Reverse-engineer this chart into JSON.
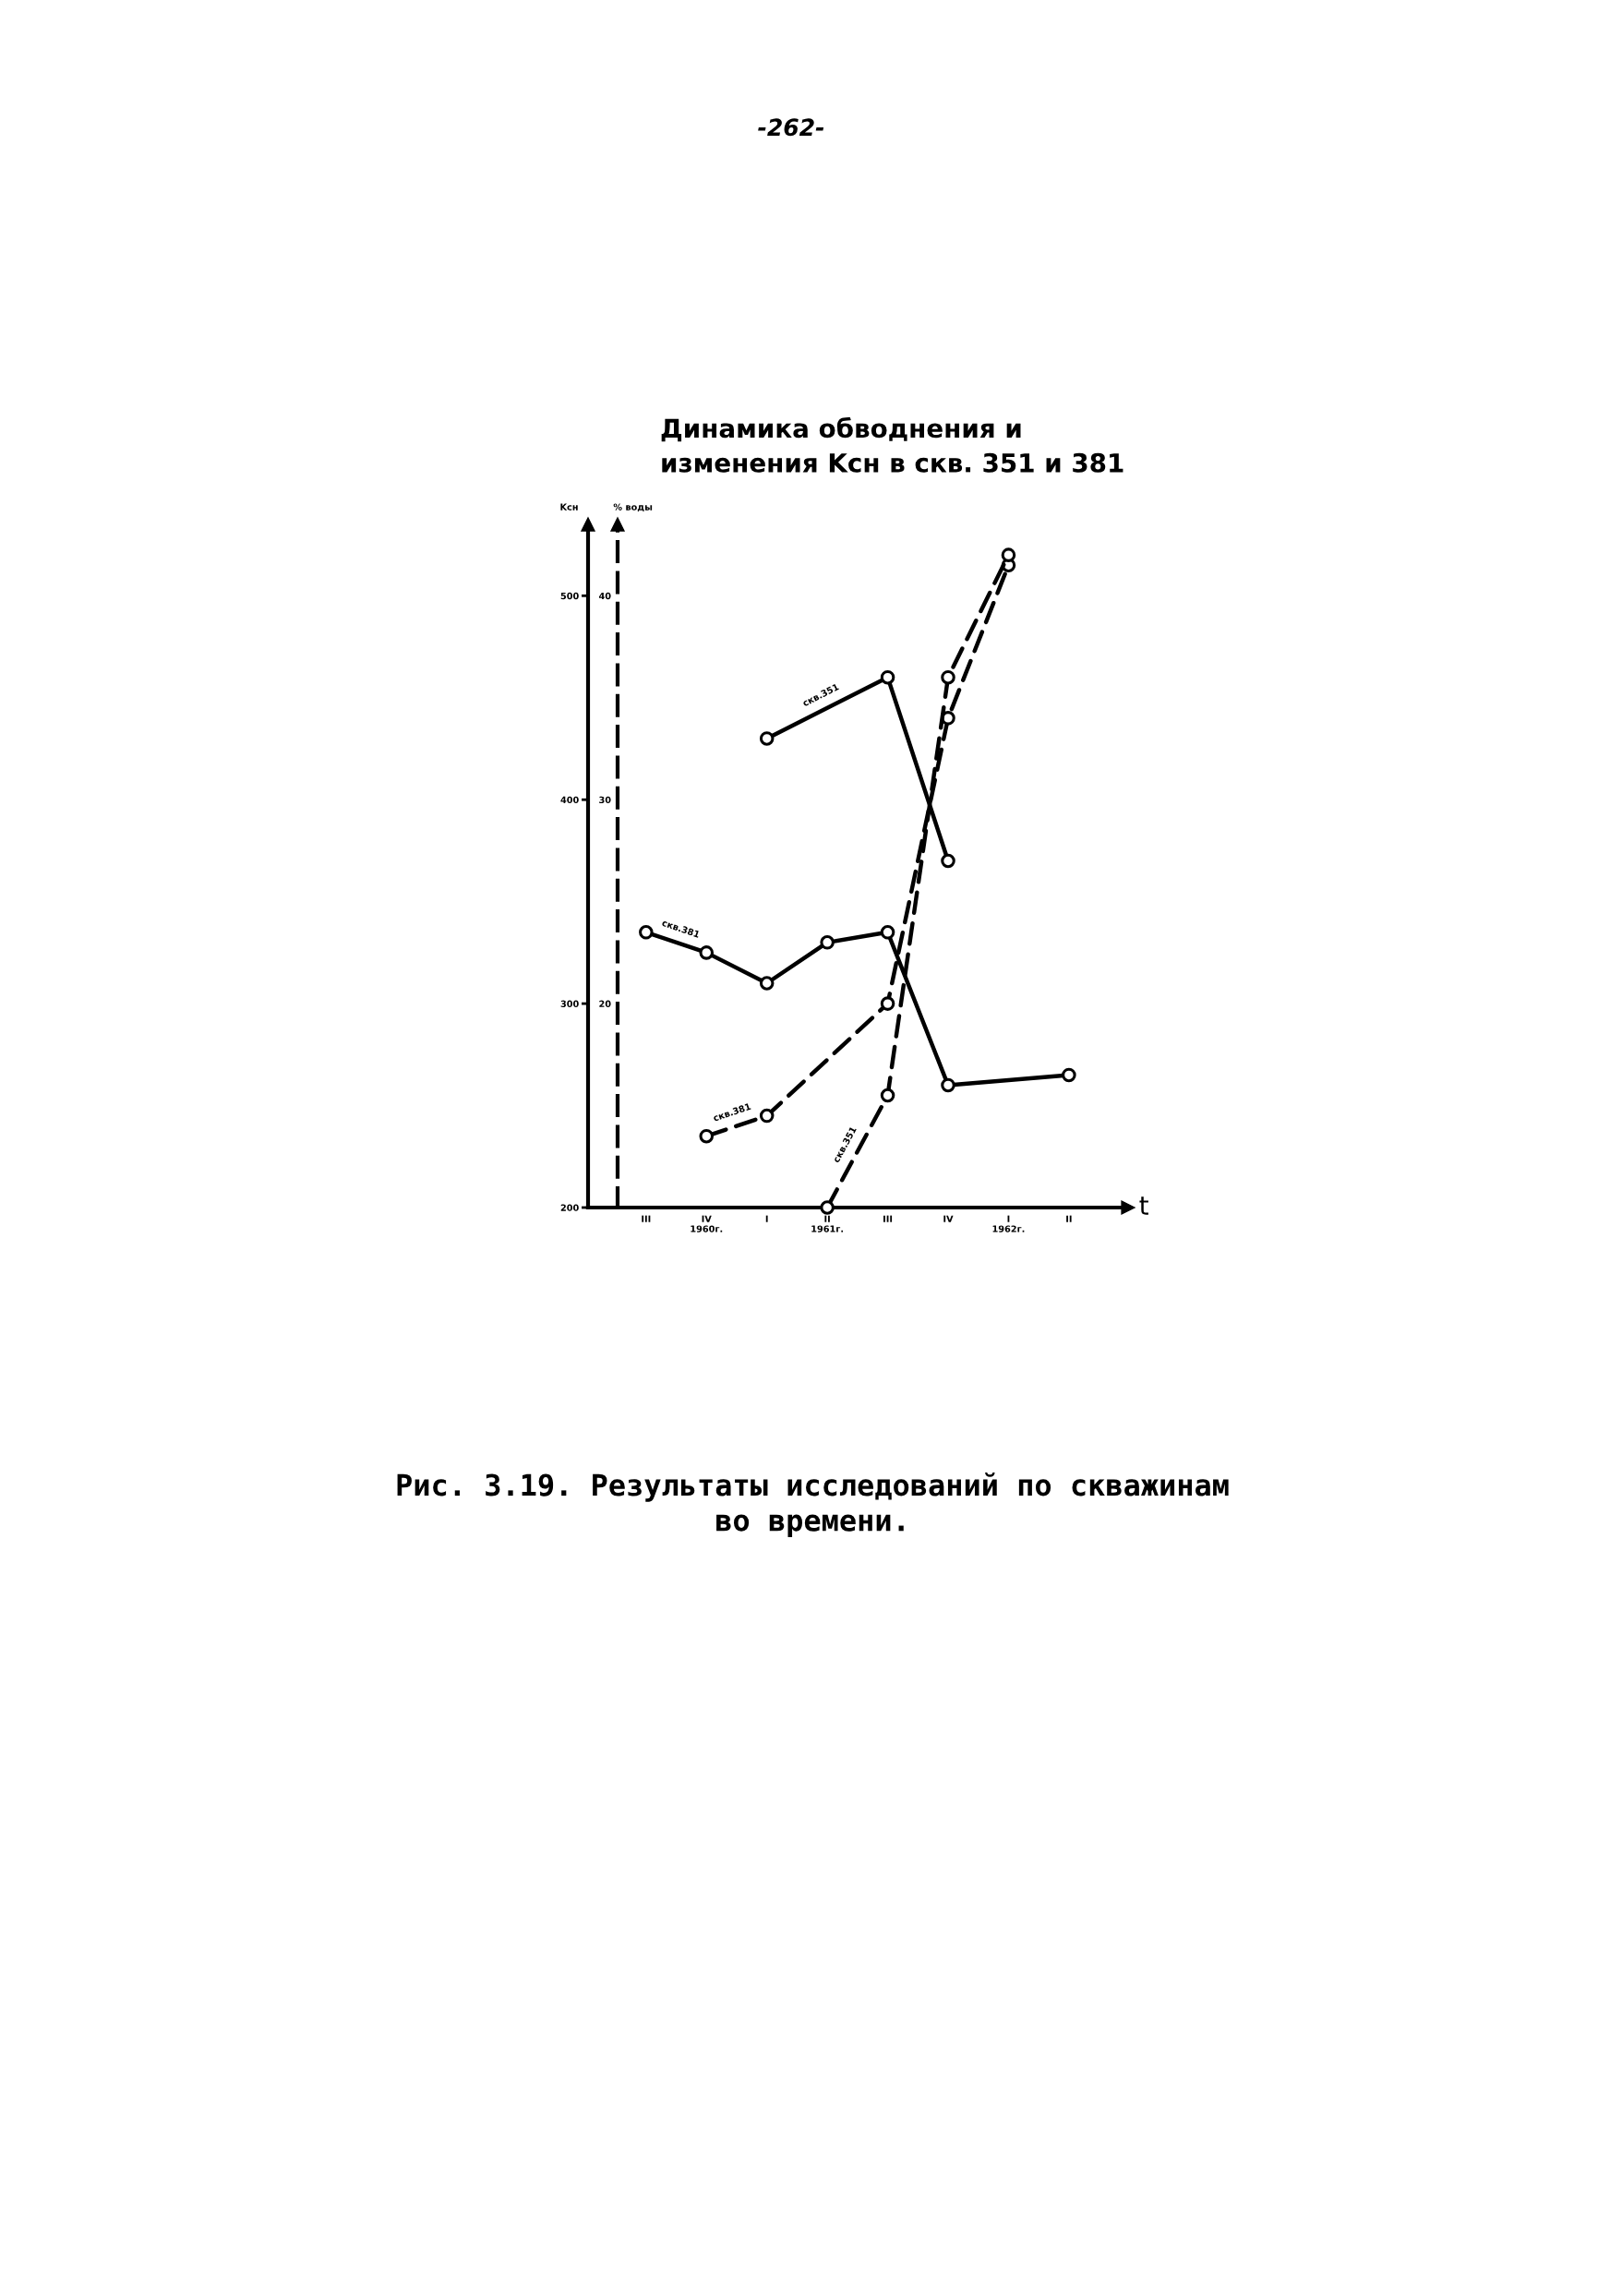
{
  "chart_data": {
    "type": "line",
    "title": "Динамика обводнения и\nизменения Kсн в скв. 351 и 381",
    "xlabel": "t",
    "ylabel": "Kсн",
    "y2label": "% воды",
    "categories": [
      "III",
      "IV\n1960г.",
      "I",
      "II\n1961г.",
      "III",
      "IV",
      "I\n1962г.",
      "II"
    ],
    "ylim": [
      200,
      535
    ],
    "yticks": [
      200,
      300,
      400,
      500
    ],
    "y2lim": [
      10,
      43.5
    ],
    "y2ticks": [
      20,
      30,
      40
    ],
    "marker": "circle",
    "series": [
      {
        "name": "скв.351",
        "color": "#000000",
        "line_style": "solid",
        "values": [
          null,
          null,
          430,
          null,
          460,
          370,
          null,
          null
        ]
      },
      {
        "name": "скв.381",
        "color": "#000000",
        "line_style": "solid",
        "values": [
          335,
          325,
          310,
          330,
          335,
          260,
          null,
          265
        ]
      },
      {
        "name": "скв.381",
        "color": "#000000",
        "line_style": "dashed",
        "axis": "y2",
        "values": [
          null,
          13.5,
          14.5,
          null,
          20,
          34,
          41.5,
          null
        ]
      },
      {
        "name": "скв.351",
        "color": "#000000",
        "line_style": "dashed",
        "axis": "y2",
        "values": [
          null,
          null,
          null,
          10,
          15.5,
          36,
          42,
          null
        ]
      }
    ],
    "annotations": [
      "-262-",
      "Рис. 3.19. Результаты исследований по скважинам\nво времени."
    ]
  }
}
